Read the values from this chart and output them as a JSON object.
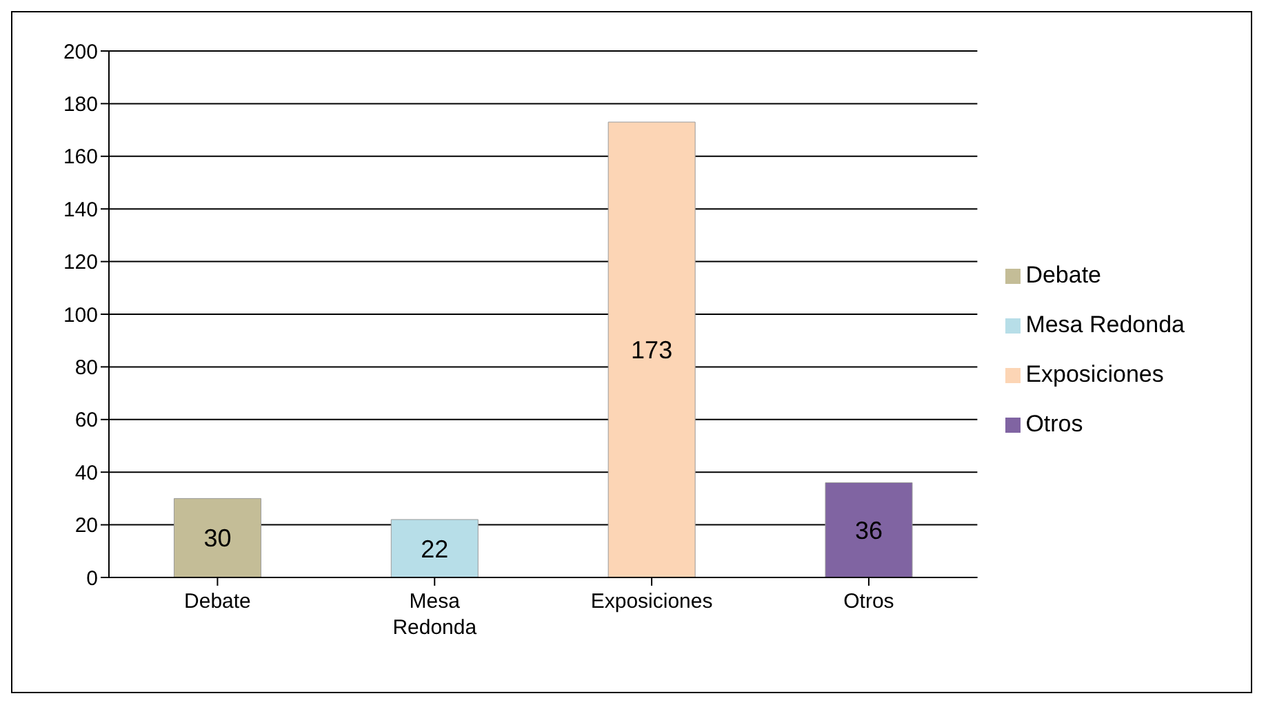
{
  "chart_data": {
    "type": "bar",
    "categories": [
      "Debate",
      "Mesa Redonda",
      "Exposiciones",
      "Otros"
    ],
    "series": [
      {
        "name": "Debate",
        "color": "#c4bd97",
        "values": [
          30,
          null,
          null,
          null
        ]
      },
      {
        "name": "Mesa Redonda",
        "color": "#b7dee8",
        "values": [
          null,
          22,
          null,
          null
        ]
      },
      {
        "name": "Exposiciones",
        "color": "#fcd5b5",
        "values": [
          null,
          null,
          173,
          null
        ]
      },
      {
        "name": "Otros",
        "color": "#8064a2",
        "values": [
          null,
          null,
          null,
          36
        ]
      }
    ],
    "stacked": true,
    "ylim": [
      0,
      200
    ],
    "yticks": [
      0,
      20,
      40,
      60,
      80,
      100,
      120,
      140,
      160,
      180,
      200
    ],
    "grid": "y",
    "legend": "right",
    "data_labels": true
  }
}
